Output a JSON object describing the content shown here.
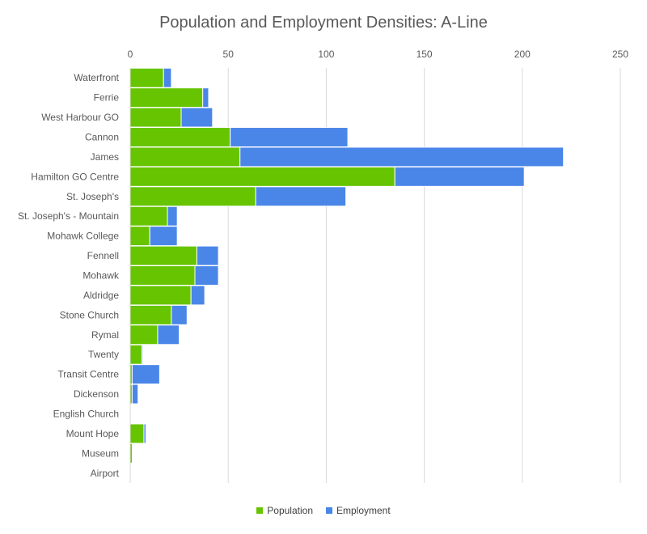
{
  "chart_data": {
    "type": "bar",
    "orientation": "horizontal",
    "stacked": true,
    "title": "Population and Employment Densities: A-Line",
    "xlim": [
      0,
      250
    ],
    "xticks": [
      0,
      50,
      100,
      150,
      200,
      250
    ],
    "grid": true,
    "legend_position": "bottom",
    "categories": [
      "Waterfront",
      "Ferrie",
      "West Harbour GO",
      "Cannon",
      "James",
      "Hamilton GO Centre",
      "St. Joseph's",
      "St. Joseph's - Mountain",
      "Mohawk College",
      "Fennell",
      "Mohawk",
      "Aldridge",
      "Stone Church",
      "Rymal",
      "Twenty",
      "Transit Centre",
      "Dickenson",
      "English Church",
      "Mount Hope",
      "Museum",
      "Airport"
    ],
    "series": [
      {
        "name": "Population",
        "color": "#66c400",
        "values": [
          17,
          37,
          26,
          51,
          56,
          135,
          64,
          19,
          10,
          34,
          33,
          31,
          21,
          14,
          6,
          1,
          1,
          0.3,
          7,
          1,
          0
        ]
      },
      {
        "name": "Employment",
        "color": "#4a86e8",
        "values": [
          4,
          3,
          16,
          60,
          165,
          66,
          46,
          5,
          14,
          11,
          12,
          7,
          8,
          11,
          0.5,
          14,
          3,
          0,
          1,
          0,
          0
        ]
      }
    ]
  }
}
